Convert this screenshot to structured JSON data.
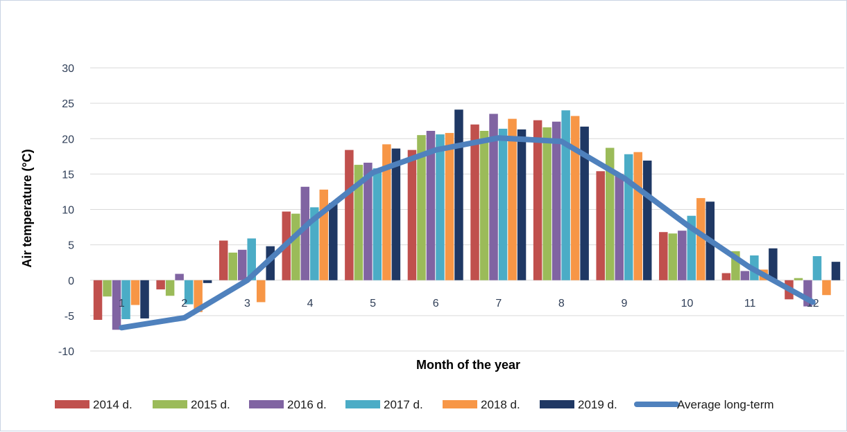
{
  "chart_data": {
    "type": "bar",
    "xlabel": "Month of the year",
    "ylabel": "Air temperature (°C)",
    "categories": [
      "1",
      "2",
      "3",
      "4",
      "5",
      "6",
      "7",
      "8",
      "9",
      "10",
      "11",
      "12"
    ],
    "yticks": [
      "30",
      "25",
      "20",
      "15",
      "10",
      "5",
      "0",
      "-5",
      "-10"
    ],
    "ylim": [
      -10,
      30
    ],
    "grid": true,
    "legend_position": "bottom",
    "series": [
      {
        "name": "2014 d.",
        "color": "#c0504d",
        "values": [
          -5.6,
          -1.3,
          5.6,
          9.7,
          18.4,
          18.4,
          22.0,
          22.6,
          15.4,
          6.8,
          1.0,
          -2.7
        ]
      },
      {
        "name": "2015 d.",
        "color": "#9bbb59",
        "values": [
          -2.3,
          -2.2,
          3.9,
          9.4,
          16.3,
          20.5,
          21.1,
          21.6,
          18.7,
          6.6,
          4.1,
          0.3
        ]
      },
      {
        "name": "2016 d.",
        "color": "#8064a2",
        "values": [
          -7.0,
          0.9,
          4.3,
          13.2,
          16.6,
          21.1,
          23.5,
          22.4,
          15.0,
          7.0,
          1.3,
          -3.7
        ]
      },
      {
        "name": "2017 d.",
        "color": "#4bacc6",
        "values": [
          -5.5,
          -3.4,
          5.9,
          10.3,
          15.8,
          20.6,
          21.4,
          24.0,
          17.8,
          9.1,
          3.5,
          3.4
        ]
      },
      {
        "name": "2018 d.",
        "color": "#f79646",
        "values": [
          -3.5,
          -4.5,
          -3.1,
          12.8,
          19.2,
          20.8,
          22.8,
          23.2,
          18.1,
          11.6,
          1.5,
          -2.1
        ]
      },
      {
        "name": "2019 d.",
        "color": "#1f3864",
        "values": [
          -5.4,
          -0.4,
          4.8,
          10.9,
          18.6,
          24.1,
          21.3,
          21.7,
          16.9,
          11.1,
          4.5,
          2.6
        ]
      }
    ],
    "line_series": {
      "name": "Average long-term",
      "color": "#4f81bd",
      "values": [
        -6.7,
        -5.3,
        0.0,
        8.2,
        15.2,
        18.4,
        20.1,
        19.6,
        14.4,
        7.8,
        1.8,
        -3.1
      ]
    }
  }
}
